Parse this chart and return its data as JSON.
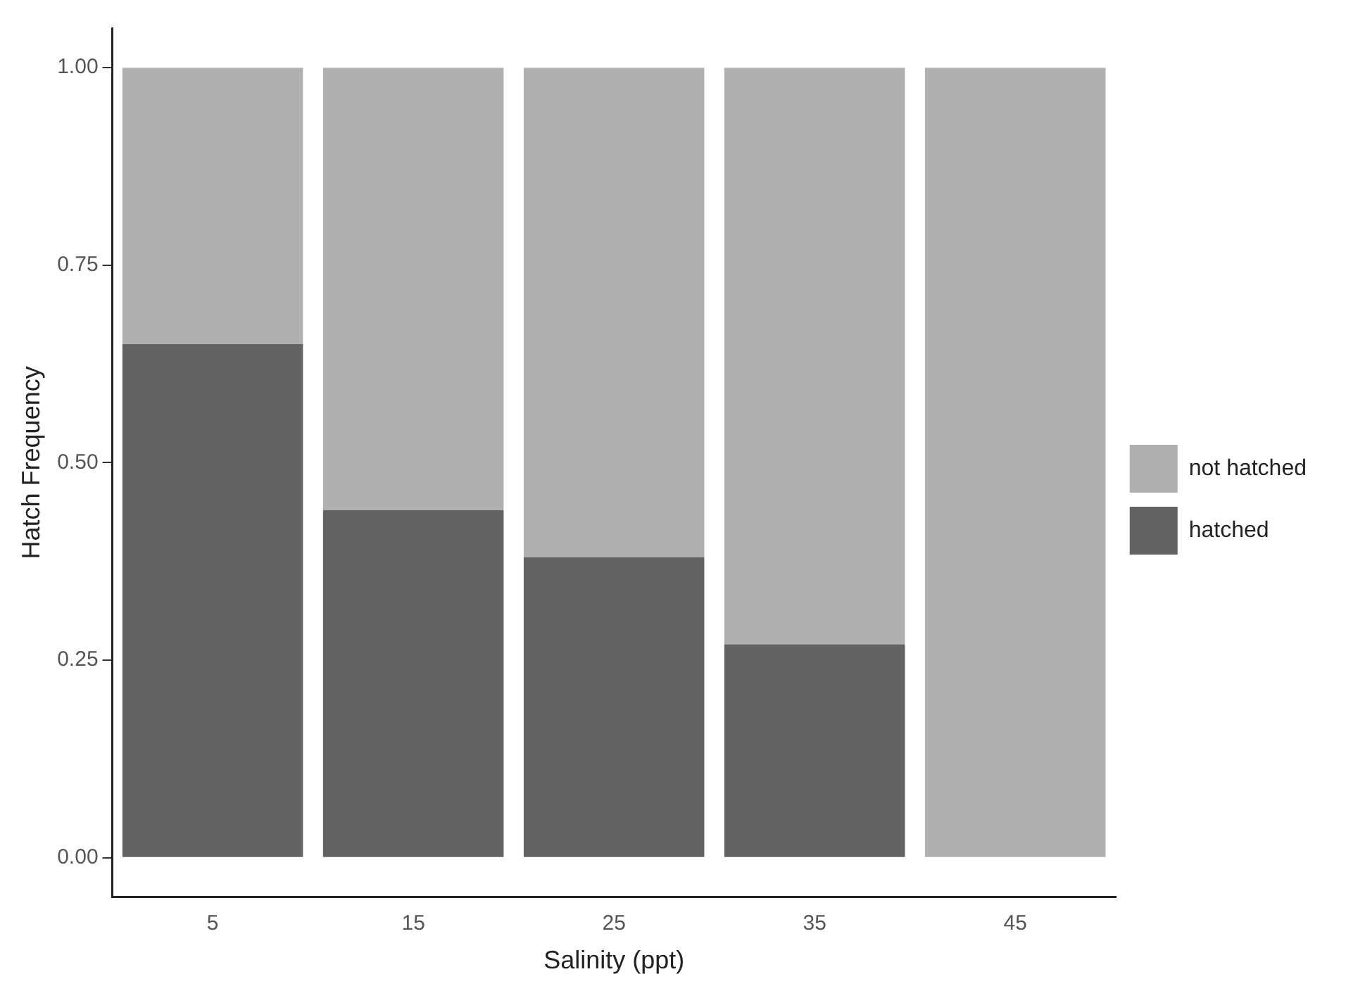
{
  "chart_data": {
    "type": "bar",
    "stacked": true,
    "xlabel": "Salinity (ppt)",
    "ylabel": "Hatch Frequency",
    "categories": [
      "5",
      "15",
      "25",
      "35",
      "45"
    ],
    "series": [
      {
        "name": "hatched",
        "color": "#636363",
        "values": [
          0.65,
          0.44,
          0.38,
          0.27,
          0
        ]
      },
      {
        "name": "not hatched",
        "color": "#b0b0b0",
        "values": [
          0.35,
          0.56,
          0.62,
          0.73,
          1
        ]
      }
    ],
    "ylim": [
      -0.05,
      1.05
    ],
    "yticks": [
      {
        "value": 0,
        "label": "0.00"
      },
      {
        "value": 0.25,
        "label": "0.25"
      },
      {
        "value": 0.5,
        "label": "0.50"
      },
      {
        "value": 0.75,
        "label": "0.75"
      },
      {
        "value": 1,
        "label": "1.00"
      }
    ],
    "grid": false,
    "legend": "right"
  }
}
